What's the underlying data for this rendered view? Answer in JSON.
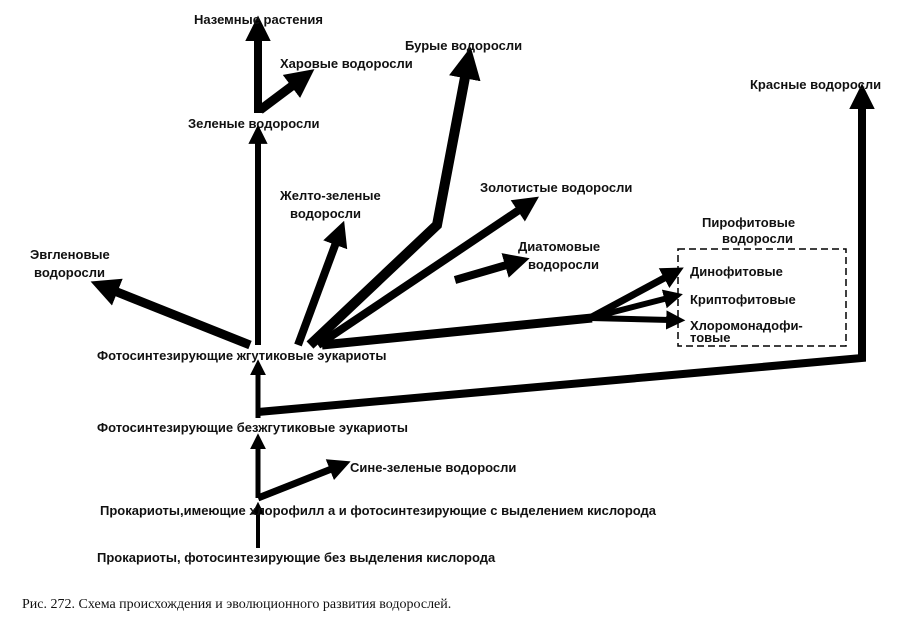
{
  "nodes": {
    "prokaryotes_anoxygenic": "Прокариоты, фотосинтезирующие без выделения кислорода",
    "prokaryotes_oxygenic": "Прокариоты,имеющие хлорофилл а и фотосинтезирующие с выделением кислорода",
    "blue_green": "Сине-зеленые водоросли",
    "nonflagellate_eukaryotes": "Фотосинтезирующие безжгутиковые эукариоты",
    "flagellate_eukaryotes": "Фотосинтезирующие жгутиковые эукариоты",
    "red": "Красные водоросли",
    "green": "Зеленые водоросли",
    "land_plants": "Наземные растения",
    "charophytes": "Харовые водоросли",
    "euglenoids": [
      "Эвгленовые",
      "водоросли"
    ],
    "yellow_green": [
      "Желто-зеленые",
      "водоросли"
    ],
    "brown": "Бурые водоросли",
    "golden": "Золотистые водоросли",
    "diatoms": [
      "Диатомовые",
      "водоросли"
    ],
    "pyrrophyta": {
      "title": [
        "Пирофитовые",
        "водоросли"
      ],
      "members": [
        "Динофитовые",
        "Криптофитовые",
        "Хлоромонадофи-",
        "товые"
      ]
    }
  },
  "caption": "Рис. 272. Схема происхождения и эволюционного развития водорослей."
}
